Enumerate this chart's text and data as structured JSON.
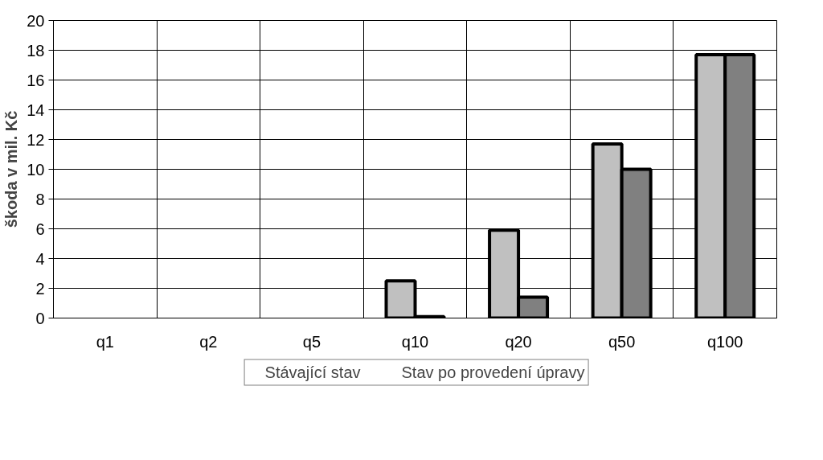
{
  "chart_data": {
    "type": "bar",
    "ylabel": "škoda v mil. Kč",
    "categories": [
      "q1",
      "q2",
      "q5",
      "q10",
      "q20",
      "q50",
      "q100"
    ],
    "series": [
      {
        "name": "Stávající stav",
        "color": "#c0c0c0",
        "values": [
          null,
          null,
          null,
          2.5,
          5.9,
          11.7,
          17.7
        ]
      },
      {
        "name": "Stav po provedení úpravy",
        "color": "#808080",
        "values": [
          null,
          null,
          null,
          0.1,
          1.4,
          10.0,
          17.7
        ]
      }
    ],
    "ylim": [
      0,
      20
    ],
    "yticks": [
      0,
      2,
      4,
      6,
      8,
      10,
      12,
      14,
      16,
      18,
      20
    ],
    "grid": true,
    "legend": "bottom"
  }
}
